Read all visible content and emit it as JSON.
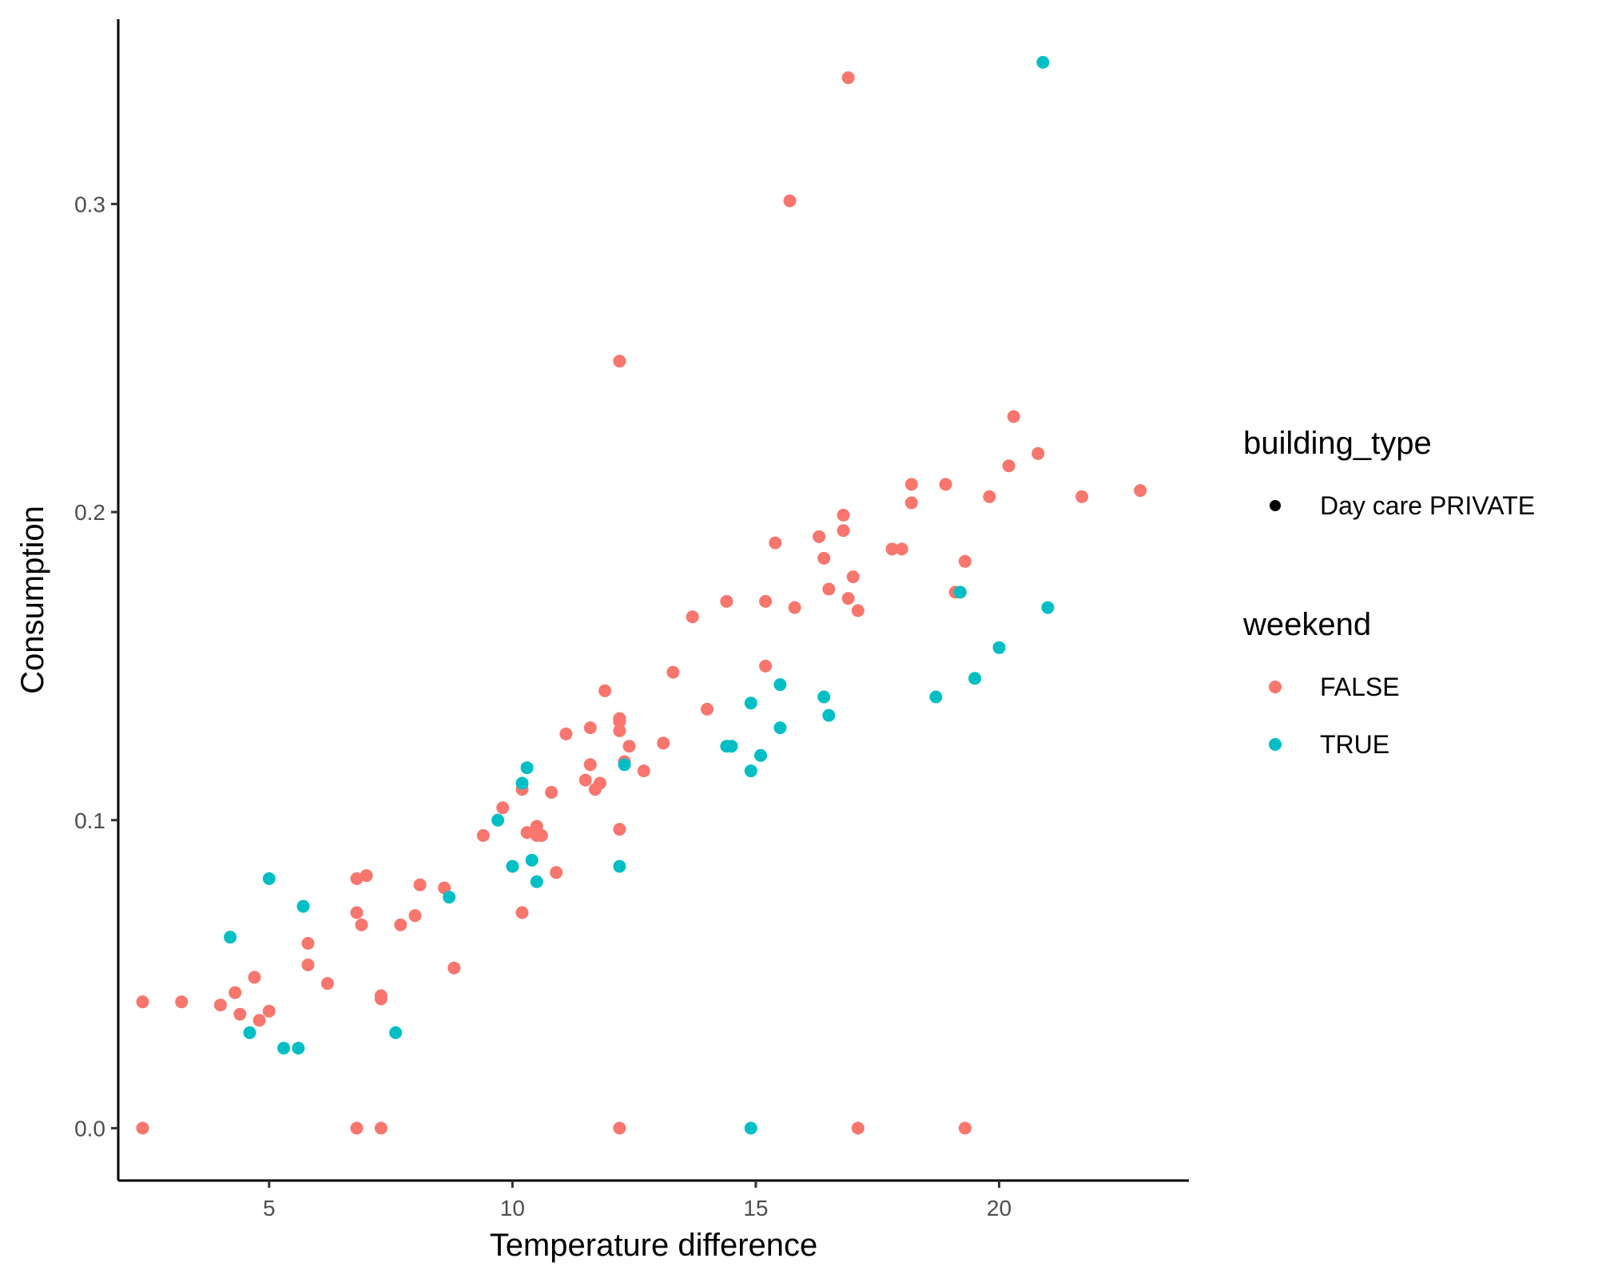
{
  "chart_data": {
    "type": "scatter",
    "title": "",
    "xlabel": "Temperature difference",
    "ylabel": "Consumption",
    "xlim": [
      1.9,
      23.9
    ],
    "ylim": [
      -0.017,
      0.36
    ],
    "x_ticks": [
      5,
      10,
      15,
      20
    ],
    "x_tick_labels": [
      "5",
      "10",
      "15",
      "20"
    ],
    "y_ticks": [
      0.0,
      0.1,
      0.2,
      0.3
    ],
    "y_tick_labels": [
      "0.0",
      "0.1",
      "0.2",
      "0.3"
    ],
    "grid": false,
    "legend_position": "right",
    "legends": [
      {
        "title": "building_type",
        "entries": [
          {
            "label": "Day care PRIVATE",
            "color": "#000000"
          }
        ]
      },
      {
        "title": "weekend",
        "entries": [
          {
            "label": "FALSE",
            "color": "#F8766D"
          },
          {
            "label": "TRUE",
            "color": "#00BFC4"
          }
        ]
      }
    ],
    "series": [
      {
        "name": "FALSE",
        "color": "#F8766D",
        "points": [
          [
            2.4,
            0.041
          ],
          [
            3.2,
            0.041
          ],
          [
            4.0,
            0.04
          ],
          [
            4.3,
            0.044
          ],
          [
            4.4,
            0.037
          ],
          [
            4.7,
            0.049
          ],
          [
            4.8,
            0.035
          ],
          [
            5.0,
            0.038
          ],
          [
            5.8,
            0.06
          ],
          [
            5.8,
            0.053
          ],
          [
            6.2,
            0.047
          ],
          [
            6.8,
            0.081
          ],
          [
            6.8,
            0.07
          ],
          [
            6.9,
            0.066
          ],
          [
            7.0,
            0.082
          ],
          [
            7.3,
            0.042
          ],
          [
            7.3,
            0.043
          ],
          [
            7.7,
            0.066
          ],
          [
            8.0,
            0.069
          ],
          [
            8.1,
            0.079
          ],
          [
            8.6,
            0.078
          ],
          [
            8.8,
            0.052
          ],
          [
            9.4,
            0.095
          ],
          [
            9.8,
            0.104
          ],
          [
            10.2,
            0.11
          ],
          [
            10.2,
            0.07
          ],
          [
            10.3,
            0.096
          ],
          [
            10.5,
            0.098
          ],
          [
            10.5,
            0.095
          ],
          [
            10.6,
            0.095
          ],
          [
            10.8,
            0.109
          ],
          [
            10.9,
            0.083
          ],
          [
            11.1,
            0.128
          ],
          [
            11.5,
            0.113
          ],
          [
            11.6,
            0.13
          ],
          [
            11.6,
            0.118
          ],
          [
            11.7,
            0.11
          ],
          [
            11.8,
            0.112
          ],
          [
            11.9,
            0.142
          ],
          [
            12.2,
            0.133
          ],
          [
            12.2,
            0.132
          ],
          [
            12.2,
            0.129
          ],
          [
            12.2,
            0.097
          ],
          [
            12.3,
            0.119
          ],
          [
            12.4,
            0.124
          ],
          [
            12.2,
            0.249
          ],
          [
            12.7,
            0.116
          ],
          [
            13.1,
            0.125
          ],
          [
            13.3,
            0.148
          ],
          [
            13.7,
            0.166
          ],
          [
            14.0,
            0.136
          ],
          [
            14.4,
            0.171
          ],
          [
            15.2,
            0.171
          ],
          [
            15.2,
            0.15
          ],
          [
            15.4,
            0.19
          ],
          [
            15.7,
            0.301
          ],
          [
            15.8,
            0.169
          ],
          [
            16.3,
            0.192
          ],
          [
            16.4,
            0.185
          ],
          [
            16.5,
            0.175
          ],
          [
            16.8,
            0.199
          ],
          [
            16.8,
            0.194
          ],
          [
            16.9,
            0.172
          ],
          [
            17.0,
            0.179
          ],
          [
            17.1,
            0.168
          ],
          [
            16.9,
            0.341
          ],
          [
            17.8,
            0.188
          ],
          [
            18.0,
            0.188
          ],
          [
            18.2,
            0.209
          ],
          [
            18.2,
            0.203
          ],
          [
            18.9,
            0.209
          ],
          [
            19.1,
            0.174
          ],
          [
            19.3,
            0.184
          ],
          [
            19.8,
            0.205
          ],
          [
            20.2,
            0.215
          ],
          [
            20.3,
            0.231
          ],
          [
            20.8,
            0.219
          ],
          [
            21.7,
            0.205
          ],
          [
            22.9,
            0.207
          ],
          [
            2.4,
            0.0
          ],
          [
            6.8,
            0.0
          ],
          [
            7.3,
            0.0
          ],
          [
            12.2,
            0.0
          ],
          [
            17.1,
            0.0
          ],
          [
            19.3,
            0.0
          ]
        ]
      },
      {
        "name": "TRUE",
        "color": "#00BFC4",
        "points": [
          [
            4.2,
            0.062
          ],
          [
            4.6,
            0.031
          ],
          [
            5.0,
            0.081
          ],
          [
            5.3,
            0.026
          ],
          [
            5.6,
            0.026
          ],
          [
            5.7,
            0.072
          ],
          [
            7.6,
            0.031
          ],
          [
            8.7,
            0.075
          ],
          [
            9.7,
            0.1
          ],
          [
            10.0,
            0.085
          ],
          [
            10.2,
            0.112
          ],
          [
            10.3,
            0.117
          ],
          [
            10.4,
            0.087
          ],
          [
            10.5,
            0.08
          ],
          [
            12.2,
            0.085
          ],
          [
            12.3,
            0.118
          ],
          [
            14.4,
            0.124
          ],
          [
            14.5,
            0.124
          ],
          [
            14.9,
            0.138
          ],
          [
            14.9,
            0.116
          ],
          [
            15.1,
            0.121
          ],
          [
            15.5,
            0.144
          ],
          [
            15.5,
            0.13
          ],
          [
            16.4,
            0.14
          ],
          [
            16.5,
            0.134
          ],
          [
            18.7,
            0.14
          ],
          [
            19.2,
            0.174
          ],
          [
            19.5,
            0.146
          ],
          [
            20.0,
            0.156
          ],
          [
            21.0,
            0.169
          ],
          [
            20.9,
            0.346
          ],
          [
            14.9,
            0.0
          ]
        ]
      }
    ]
  }
}
